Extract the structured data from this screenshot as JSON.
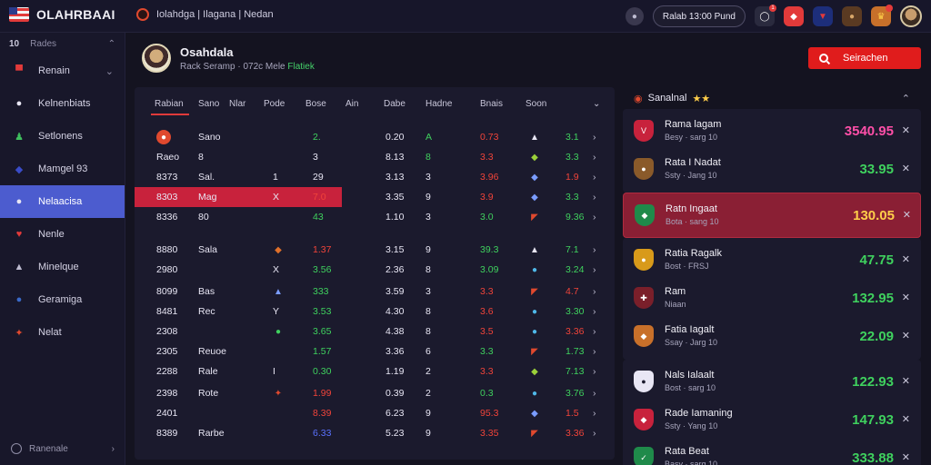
{
  "app": {
    "name": "OLAHRBAAI",
    "top_nav": "Iolahdga | Ilagana | Nedan",
    "balance": "Ralab 13:00 Pund",
    "notif_count": "1"
  },
  "colors": {
    "accent": "#4c5ccf",
    "cta": "#e01c1c",
    "positive": "#3fd15e",
    "negative": "#f1443a",
    "highlight_row": "#c8223c"
  },
  "sidebar": {
    "head_num": "10",
    "head_label": "Rades",
    "items": [
      {
        "label": "Renain",
        "icon": "cap-icon",
        "active": false,
        "chevron": true
      },
      {
        "label": "Kelnenbiats",
        "icon": "face-icon",
        "active": false,
        "chevron": false
      },
      {
        "label": "Setlonens",
        "icon": "player-icon",
        "active": false,
        "chevron": false
      },
      {
        "label": "Mamgel 93",
        "icon": "shield-icon",
        "active": false,
        "chevron": false
      },
      {
        "label": "Nelaacisa",
        "icon": "person-icon",
        "active": true,
        "chevron": false
      },
      {
        "label": "Nenle",
        "icon": "heart-icon",
        "active": false,
        "chevron": false
      },
      {
        "label": "Minelque",
        "icon": "chart-icon",
        "active": false,
        "chevron": false
      },
      {
        "label": "Geramiga",
        "icon": "helmet-icon",
        "active": false,
        "chevron": false
      },
      {
        "label": "Nelat",
        "icon": "flag-icon",
        "active": false,
        "chevron": false
      }
    ],
    "footer": "Ranenale"
  },
  "profile": {
    "name": "Osahdala",
    "sub": "Rack Seramp · 072c Mele",
    "sub_highlight": "Flatiek"
  },
  "cta_label": "Seirachen",
  "table": {
    "headers": [
      "Rabian",
      "Sano",
      "Nlar",
      "Pode",
      "Bose",
      "Ain",
      "Dabe",
      "Hadne",
      "Bnais",
      "Soon"
    ],
    "rows": [
      {
        "a": "",
        "b": "Sano",
        "c": "",
        "d": "2.",
        "e": "0.20",
        "f": "A",
        "g": "0.73",
        "h": "",
        "i": "3.1",
        "a_icon": true,
        "c_icon": "",
        "f_color": "green",
        "h_icon": "cone"
      },
      {
        "a": "Raeo",
        "b": "8",
        "c": "",
        "d": "3",
        "e": "8.13",
        "f": "8",
        "g": "3.3",
        "h": "",
        "i": "3.3",
        "a_icon": false,
        "c_icon": "",
        "f_color": "green",
        "h_icon": "leaf"
      },
      {
        "a": "8373",
        "b": "Sal.",
        "c": "1",
        "d": "29",
        "e": "3.13",
        "f": "3",
        "g": "3.96",
        "h": "",
        "i": "1.9",
        "a_icon": false,
        "c_icon": "",
        "f_color": "white",
        "h_icon": "shield"
      },
      {
        "a": "8303",
        "b": "Mag",
        "c": "X",
        "d": "7.0",
        "e": "3.35",
        "f": "9",
        "g": "3.9",
        "h": "",
        "i": "3.3",
        "a_icon": false,
        "c_icon": "",
        "f_color": "white",
        "h_icon": "shield"
      },
      {
        "a": "8336",
        "b": "80",
        "c": "",
        "d": "43",
        "e": "1.10",
        "f": "3",
        "g": "3.0",
        "h": "",
        "i": "9.36",
        "a_icon": false,
        "c_icon": "",
        "f_color": "white",
        "h_icon": "bolt"
      },
      {
        "a": "8880",
        "b": "Sala",
        "c": "",
        "d": "1.37",
        "e": "3.15",
        "f": "9",
        "g": "39.3",
        "h": "",
        "i": "7.1",
        "a_icon": false,
        "c_icon": "diamond",
        "f_color": "white",
        "h_icon": "cone"
      },
      {
        "a": "2980",
        "b": "",
        "c": "X",
        "d": "3.56",
        "e": "2.36",
        "f": "8",
        "g": "3.09",
        "h": "",
        "i": "3.24",
        "a_icon": false,
        "c_icon": "",
        "f_color": "white",
        "h_icon": "ball"
      },
      {
        "a": "8099",
        "b": "Bas",
        "c": "",
        "d": "333",
        "e": "3.59",
        "f": "3",
        "g": "3.3",
        "h": "",
        "i": "4.7",
        "a_icon": false,
        "c_icon": "tri",
        "f_color": "white",
        "h_icon": "bolt"
      },
      {
        "a": "8481",
        "b": "Rec",
        "c": "Y",
        "d": "3.53",
        "e": "4.30",
        "f": "8",
        "g": "3.6",
        "h": "",
        "i": "3.30",
        "a_icon": false,
        "c_icon": "",
        "f_color": "white",
        "h_icon": "ball"
      },
      {
        "a": "2308",
        "b": "",
        "c": "",
        "d": "3.65",
        "e": "4.38",
        "f": "8",
        "g": "3.5",
        "h": "",
        "i": "3.36",
        "a_icon": false,
        "c_icon": "gball",
        "f_color": "white",
        "h_icon": "ball"
      },
      {
        "a": "2305",
        "b": "Reuoe",
        "c": "",
        "d": "1.57",
        "e": "3.36",
        "f": "6",
        "g": "3.3",
        "h": "",
        "i": "1.73",
        "a_icon": false,
        "c_icon": "",
        "f_color": "white",
        "h_icon": "bolt"
      },
      {
        "a": "2288",
        "b": "Rale",
        "c": "I",
        "d": "0.30",
        "e": "1.19",
        "f": "2",
        "g": "3.3",
        "h": "",
        "i": "7.13",
        "a_icon": false,
        "c_icon": "",
        "f_color": "white",
        "h_icon": "leaf"
      },
      {
        "a": "2398",
        "b": "Rote",
        "c": "",
        "d": "1.99",
        "e": "0.39",
        "f": "2",
        "g": "0.3",
        "h": "",
        "i": "3.76",
        "a_icon": false,
        "c_icon": "star",
        "f_color": "white",
        "h_icon": "ball"
      },
      {
        "a": "2401",
        "b": "",
        "c": "",
        "d": "8.39",
        "e": "6.23",
        "f": "9",
        "g": "95.3",
        "h": "",
        "i": "1.5",
        "a_icon": false,
        "c_icon": "",
        "f_color": "white",
        "h_icon": "shield"
      },
      {
        "a": "8389",
        "b": "Rarbe",
        "c": "",
        "d": "6.33",
        "e": "5.23",
        "f": "9",
        "g": "3.35",
        "h": "",
        "i": "3.36",
        "a_icon": false,
        "c_icon": "",
        "f_color": "white",
        "h_icon": "bolt"
      }
    ],
    "d_colors": [
      "green",
      "white",
      "white",
      "red",
      "green",
      "red",
      "green",
      "green",
      "green",
      "green",
      "green",
      "green",
      "red",
      "red",
      "blue"
    ],
    "g_colors": [
      "red",
      "red",
      "red",
      "red",
      "green",
      "green",
      "green",
      "red",
      "red",
      "red",
      "green",
      "red",
      "green",
      "red",
      "red"
    ],
    "i_colors": [
      "green",
      "green",
      "red",
      "green",
      "green",
      "green",
      "green",
      "red",
      "green",
      "red",
      "green",
      "green",
      "green",
      "red",
      "red"
    ]
  },
  "right_panel": {
    "title": "Sanalnal",
    "stars": "★★",
    "cards": [
      {
        "rows": [
          {
            "title": "Rama lagam",
            "sub": "Besy · sarg 10",
            "value": "3540.95",
            "color": "pink",
            "shield": "#c8223c",
            "glyph": "V"
          },
          {
            "title": "Rata I Nadat",
            "sub": "Ssty · Jang 10",
            "value": "33.95",
            "color": "green",
            "shield": "#8a5a2a",
            "glyph": "●"
          }
        ],
        "highlight": false
      },
      {
        "rows": [
          {
            "title": "Ratn Ingaat",
            "sub": "Bota · sang 10",
            "value": "130.05",
            "color": "gold",
            "shield": "#1f8a4a",
            "glyph": "◆"
          }
        ],
        "highlight": true
      },
      {
        "rows": [
          {
            "title": "Ratia Ragalk",
            "sub": "Bost · FRSJ",
            "value": "47.75",
            "color": "green",
            "shield": "#d89a1a",
            "glyph": "●"
          },
          {
            "title": "Ram",
            "sub": "Niaan",
            "value": "132.95",
            "color": "green",
            "shield": "#7a1f2a",
            "glyph": "✚"
          },
          {
            "title": "Fatia Iagalt",
            "sub": "Ssay · Jarg 10",
            "value": "22.09",
            "color": "green",
            "shield": "#c8702a",
            "glyph": "◆"
          }
        ],
        "highlight": false
      },
      {
        "rows": [
          {
            "title": "Nals Ialaalt",
            "sub": "Bost · sarg 10",
            "value": "122.93",
            "color": "green",
            "shield": "#e8e6f4",
            "glyph": "●"
          },
          {
            "title": "Rade Iamaning",
            "sub": "Ssty · Yang 10",
            "value": "147.93",
            "color": "green",
            "shield": "#c8223c",
            "glyph": "◆"
          },
          {
            "title": "Rata Beat",
            "sub": "Basy · sarg 10",
            "value": "333.88",
            "color": "green",
            "shield": "#1f8a4a",
            "glyph": "✓"
          }
        ],
        "highlight": false
      }
    ]
  }
}
